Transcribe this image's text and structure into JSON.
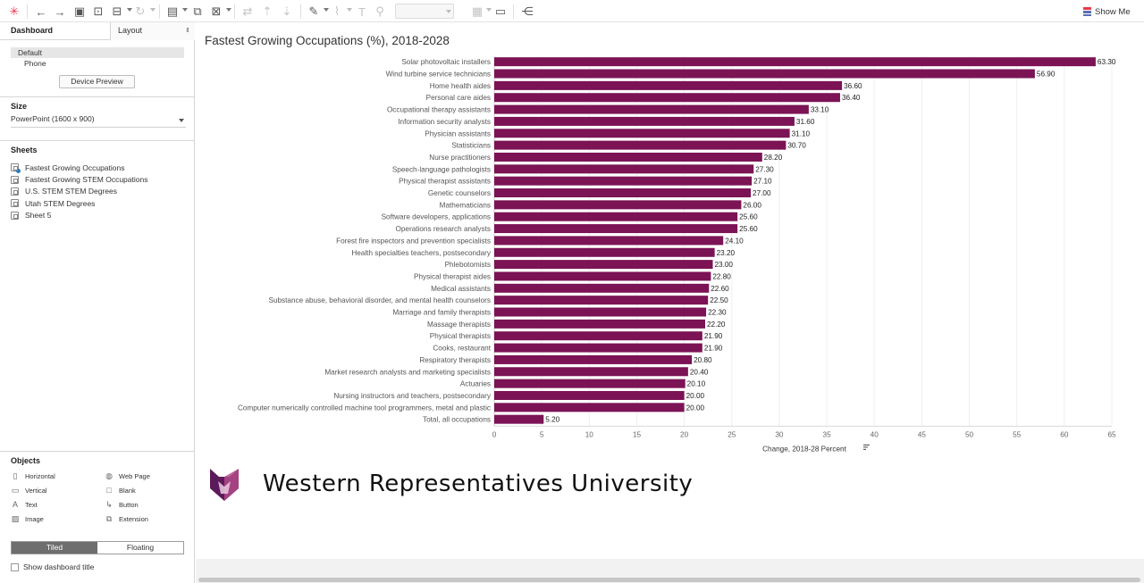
{
  "toolbar": {
    "icons": [
      "tableau-logo-icon",
      "undo-icon",
      "redo-icon",
      "save-icon",
      "new-datasource-icon",
      "pause-updates-icon",
      "refresh-icon",
      "new-worksheet-icon",
      "duplicate-sheet-icon",
      "clear-sheet-icon",
      "swap-icon",
      "sort-ascending-icon",
      "sort-descending-icon",
      "highlight-icon",
      "group-icon",
      "label-icon",
      "pin-icon",
      "fit-combo",
      "show-cards-icon",
      "presentation-icon",
      "share-icon"
    ],
    "show_me_label": "Show Me",
    "show_me_color": "#e8384f"
  },
  "left_panel": {
    "tab_dashboard": "Dashboard",
    "tab_layout": "Layout",
    "devices": [
      "Default",
      "Phone"
    ],
    "device_preview_button": "Device Preview",
    "size_heading": "Size",
    "size_value": "PowerPoint (1600 x 900)",
    "sheets_heading": "Sheets",
    "sheets": [
      "Fastest Growing Occupations",
      "Fastest Growing STEM Occupations",
      "U.S. STEM STEM Degrees",
      "Utah STEM Degrees",
      "Sheet 5"
    ],
    "objects_heading": "Objects",
    "objects": [
      {
        "label": "Horizontal",
        "icon": "horizontal-container-icon"
      },
      {
        "label": "Web Page",
        "icon": "globe-icon"
      },
      {
        "label": "Vertical",
        "icon": "vertical-container-icon"
      },
      {
        "label": "Blank",
        "icon": "blank-icon"
      },
      {
        "label": "Text",
        "icon": "text-icon"
      },
      {
        "label": "Button",
        "icon": "button-icon"
      },
      {
        "label": "Image",
        "icon": "image-icon"
      },
      {
        "label": "Extension",
        "icon": "extension-icon"
      }
    ],
    "tiled_label": "Tiled",
    "floating_label": "Floating",
    "show_title_label": "Show dashboard title"
  },
  "brand": {
    "name": "Western Representatives University",
    "logo_color_dark": "#5b1a5a",
    "logo_color_light": "#b24a8a"
  },
  "chart_data": {
    "type": "bar",
    "orientation": "horizontal",
    "title": "Fastest Growing Occupations (%), 2018-2028",
    "xlabel": "Change, 2018-28 Percent",
    "xlim": [
      0,
      65
    ],
    "xticks": [
      0,
      5,
      10,
      15,
      20,
      25,
      30,
      35,
      40,
      45,
      50,
      55,
      60,
      65
    ],
    "grid": true,
    "bar_color": "#7b1355",
    "categories": [
      "Solar photovoltaic installers",
      "Wind turbine service technicians",
      "Home health aides",
      "Personal care aides",
      "Occupational therapy assistants",
      "Information security analysts",
      "Physician assistants",
      "Statisticians",
      "Nurse practitioners",
      "Speech-language pathologists",
      "Physical therapist assistants",
      "Genetic counselors",
      "Mathematicians",
      "Software developers, applications",
      "Operations research analysts",
      "Forest fire inspectors and prevention specialists",
      "Health specialties teachers, postsecondary",
      "Phlebotomists",
      "Physical therapist aides",
      "Medical assistants",
      "Substance abuse, behavioral disorder, and mental health counselors",
      "Marriage and family therapists",
      "Massage therapists",
      "Physical therapists",
      "Cooks, restaurant",
      "Respiratory therapists",
      "Market research analysts and marketing specialists",
      "Actuaries",
      "Nursing instructors and teachers, postsecondary",
      "Computer numerically controlled machine tool programmers, metal and plastic",
      "Total, all occupations"
    ],
    "values": [
      63.3,
      56.9,
      36.6,
      36.4,
      33.1,
      31.6,
      31.1,
      30.7,
      28.2,
      27.3,
      27.1,
      27.0,
      26.0,
      25.6,
      25.6,
      24.1,
      23.2,
      23.0,
      22.8,
      22.6,
      22.5,
      22.3,
      22.2,
      21.9,
      21.9,
      20.8,
      20.4,
      20.1,
      20.0,
      20.0,
      5.2
    ],
    "labels": [
      "63.30",
      "56.90",
      "36.60",
      "36.40",
      "33.10",
      "31.60",
      "31.10",
      "30.70",
      "28.20",
      "27.30",
      "27.10",
      "27.00",
      "26.00",
      "25.60",
      "25.60",
      "24.10",
      "23.20",
      "23.00",
      "22.80",
      "22.60",
      "22.50",
      "22.30",
      "22.20",
      "21.90",
      "21.90",
      "20.80",
      "20.40",
      "20.10",
      "20.00",
      "20.00",
      "5.20"
    ]
  }
}
